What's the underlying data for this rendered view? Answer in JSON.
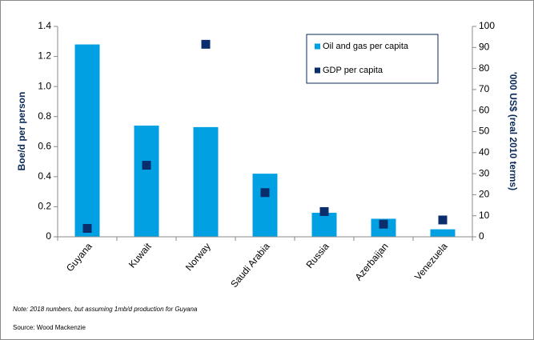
{
  "chart_data": {
    "type": "bar_scatter",
    "categories": [
      "Guyana",
      "Kuwait",
      "Norway",
      "Saudi Arabia",
      "Russia",
      "Azerbaijan",
      "Venezuela"
    ],
    "series": [
      {
        "name": "Oil and gas per capita",
        "color": "#00a0e3",
        "values": [
          1.28,
          0.74,
          0.73,
          0.42,
          0.16,
          0.12,
          0.05
        ]
      },
      {
        "name": "GDP per capita",
        "color": "#0a2d6e",
        "axis": "y2",
        "values": [
          4,
          34,
          91.5,
          21,
          12,
          6,
          8
        ]
      }
    ],
    "y_label": "Boe/d per person",
    "y2_label": "'000 US$ (real 2010 terms)",
    "ylim": [
      0,
      1.4
    ],
    "yticks": [
      0,
      0.2,
      0.4,
      0.6,
      0.8,
      {
        "value": 1,
        "label": "1.0"
      },
      1.2,
      1.4
    ],
    "y2lim": [
      0,
      100
    ],
    "y2ticks": [
      0,
      10,
      20,
      30,
      40,
      50,
      60,
      70,
      80,
      90,
      100
    ],
    "note": "Note: 2018 numbers, but assuming 1mb/d production for Guyana",
    "source": "Source: Wood Mackenzie"
  }
}
